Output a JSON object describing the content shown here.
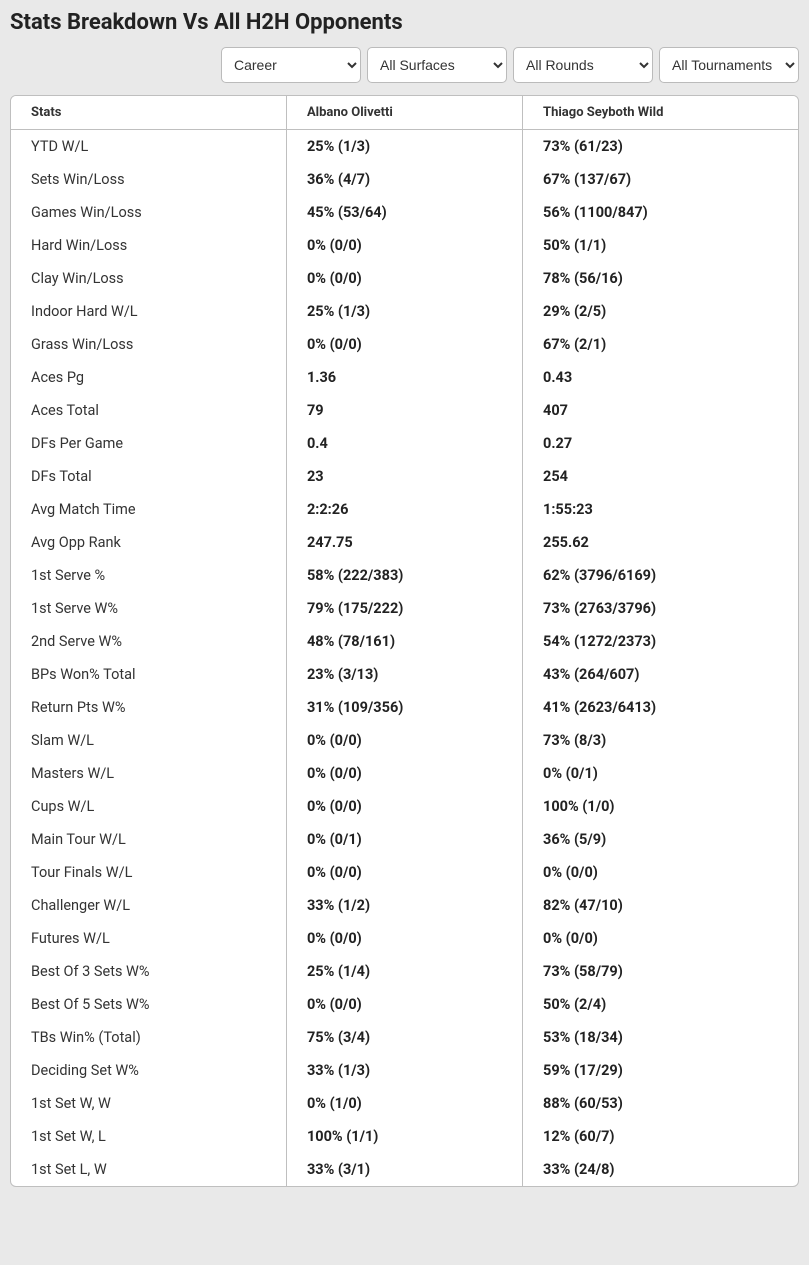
{
  "title": "Stats Breakdown Vs All H2H Opponents",
  "filters": {
    "period": {
      "selected": "Career",
      "options": [
        "Career"
      ]
    },
    "surface": {
      "selected": "All Surfaces",
      "options": [
        "All Surfaces"
      ]
    },
    "round": {
      "selected": "All Rounds",
      "options": [
        "All Rounds"
      ]
    },
    "tournament": {
      "selected": "All Tournaments",
      "options": [
        "All Tournaments"
      ]
    }
  },
  "columns": {
    "stats": "Stats",
    "player1": "Albano Olivetti",
    "player2": "Thiago Seyboth Wild"
  },
  "rows": [
    {
      "label": "YTD W/L",
      "p1": "25% (1/3)",
      "p2": "73% (61/23)"
    },
    {
      "label": "Sets Win/Loss",
      "p1": "36% (4/7)",
      "p2": "67% (137/67)"
    },
    {
      "label": "Games Win/Loss",
      "p1": "45% (53/64)",
      "p2": "56% (1100/847)"
    },
    {
      "label": "Hard Win/Loss",
      "p1": "0% (0/0)",
      "p2": "50% (1/1)"
    },
    {
      "label": "Clay Win/Loss",
      "p1": "0% (0/0)",
      "p2": "78% (56/16)"
    },
    {
      "label": "Indoor Hard W/L",
      "p1": "25% (1/3)",
      "p2": "29% (2/5)"
    },
    {
      "label": "Grass Win/Loss",
      "p1": "0% (0/0)",
      "p2": "67% (2/1)"
    },
    {
      "label": "Aces Pg",
      "p1": "1.36",
      "p2": "0.43"
    },
    {
      "label": "Aces Total",
      "p1": "79",
      "p2": "407"
    },
    {
      "label": "DFs Per Game",
      "p1": "0.4",
      "p2": "0.27"
    },
    {
      "label": "DFs Total",
      "p1": "23",
      "p2": "254"
    },
    {
      "label": "Avg Match Time",
      "p1": "2:2:26",
      "p2": "1:55:23"
    },
    {
      "label": "Avg Opp Rank",
      "p1": "247.75",
      "p2": "255.62"
    },
    {
      "label": "1st Serve %",
      "p1": "58% (222/383)",
      "p2": "62% (3796/6169)"
    },
    {
      "label": "1st Serve W%",
      "p1": "79% (175/222)",
      "p2": "73% (2763/3796)"
    },
    {
      "label": "2nd Serve W%",
      "p1": "48% (78/161)",
      "p2": "54% (1272/2373)"
    },
    {
      "label": "BPs Won% Total",
      "p1": "23% (3/13)",
      "p2": "43% (264/607)"
    },
    {
      "label": "Return Pts W%",
      "p1": "31% (109/356)",
      "p2": "41% (2623/6413)"
    },
    {
      "label": "Slam W/L",
      "p1": "0% (0/0)",
      "p2": "73% (8/3)"
    },
    {
      "label": "Masters W/L",
      "p1": "0% (0/0)",
      "p2": "0% (0/1)"
    },
    {
      "label": "Cups W/L",
      "p1": "0% (0/0)",
      "p2": "100% (1/0)"
    },
    {
      "label": "Main Tour W/L",
      "p1": "0% (0/1)",
      "p2": "36% (5/9)"
    },
    {
      "label": "Tour Finals W/L",
      "p1": "0% (0/0)",
      "p2": "0% (0/0)"
    },
    {
      "label": "Challenger W/L",
      "p1": "33% (1/2)",
      "p2": "82% (47/10)"
    },
    {
      "label": "Futures W/L",
      "p1": "0% (0/0)",
      "p2": "0% (0/0)"
    },
    {
      "label": "Best Of 3 Sets W%",
      "p1": "25% (1/4)",
      "p2": "73% (58/79)"
    },
    {
      "label": "Best Of 5 Sets W%",
      "p1": "0% (0/0)",
      "p2": "50% (2/4)"
    },
    {
      "label": "TBs Win% (Total)",
      "p1": "75% (3/4)",
      "p2": "53% (18/34)"
    },
    {
      "label": "Deciding Set W%",
      "p1": "33% (1/3)",
      "p2": "59% (17/29)"
    },
    {
      "label": "1st Set W, W",
      "p1": "0% (1/0)",
      "p2": "88% (60/53)"
    },
    {
      "label": "1st Set W, L",
      "p1": "100% (1/1)",
      "p2": "12% (60/7)"
    },
    {
      "label": "1st Set L, W",
      "p1": "33% (3/1)",
      "p2": "33% (24/8)"
    }
  ]
}
